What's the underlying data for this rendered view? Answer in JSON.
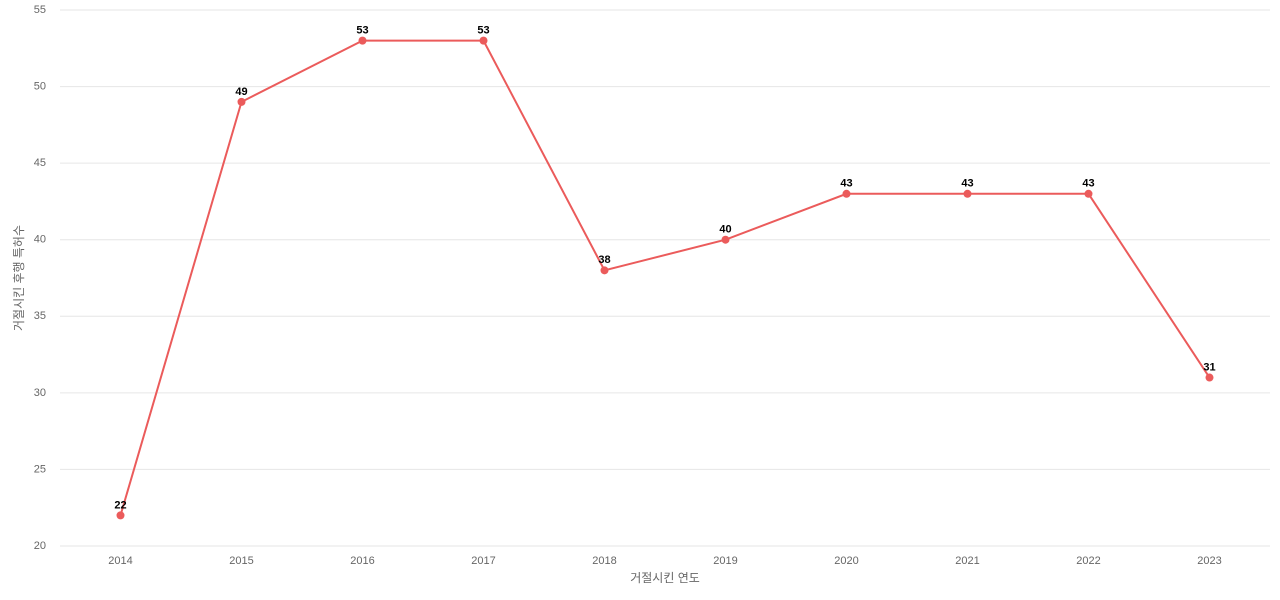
{
  "chart_data": {
    "type": "line",
    "x_label": "거절시킨 연도",
    "y_label": "거절시킨 후행 특허수",
    "categories": [
      "2014",
      "2015",
      "2016",
      "2017",
      "2018",
      "2019",
      "2020",
      "2021",
      "2022",
      "2023"
    ],
    "values": [
      22,
      49,
      53,
      53,
      38,
      40,
      43,
      43,
      43,
      31
    ],
    "color": "#eb5b5b",
    "ylim": [
      20,
      55
    ],
    "yticks": [
      20,
      25,
      30,
      35,
      40,
      45,
      50,
      55
    ],
    "grid": true,
    "data_labels": true
  }
}
